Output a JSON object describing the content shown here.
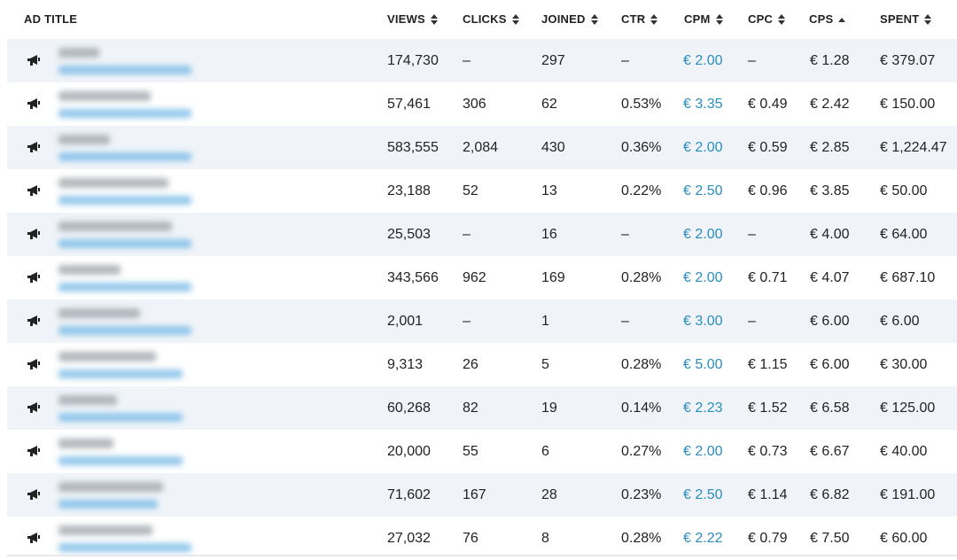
{
  "columns": {
    "ad_title": "AD TITLE",
    "views": "VIEWS",
    "clicks": "CLICKS",
    "joined": "JOINED",
    "ctr": "CTR",
    "cpm": "CPM",
    "cpc": "CPC",
    "cps": "CPS",
    "spent": "SPENT"
  },
  "sort": {
    "column": "CPS",
    "direction": "ascending"
  },
  "colors": {
    "accent": "#2a8dbf",
    "row_alt": "#f0f4f8"
  },
  "row_icon": "megaphone-icon",
  "rows": [
    {
      "views": "174,730",
      "clicks": "–",
      "joined": "297",
      "ctr": "–",
      "cpm": "€ 2.00",
      "cpc": "–",
      "cps": "€ 1.28",
      "spent": "€ 379.07"
    },
    {
      "views": "57,461",
      "clicks": "306",
      "joined": "62",
      "ctr": "0.53%",
      "cpm": "€ 3.35",
      "cpc": "€ 0.49",
      "cps": "€ 2.42",
      "spent": "€ 150.00"
    },
    {
      "views": "583,555",
      "clicks": "2,084",
      "joined": "430",
      "ctr": "0.36%",
      "cpm": "€ 2.00",
      "cpc": "€ 0.59",
      "cps": "€ 2.85",
      "spent": "€ 1,224.47"
    },
    {
      "views": "23,188",
      "clicks": "52",
      "joined": "13",
      "ctr": "0.22%",
      "cpm": "€ 2.50",
      "cpc": "€ 0.96",
      "cps": "€ 3.85",
      "spent": "€ 50.00"
    },
    {
      "views": "25,503",
      "clicks": "–",
      "joined": "16",
      "ctr": "–",
      "cpm": "€ 2.00",
      "cpc": "–",
      "cps": "€ 4.00",
      "spent": "€ 64.00"
    },
    {
      "views": "343,566",
      "clicks": "962",
      "joined": "169",
      "ctr": "0.28%",
      "cpm": "€ 2.00",
      "cpc": "€ 0.71",
      "cps": "€ 4.07",
      "spent": "€ 687.10"
    },
    {
      "views": "2,001",
      "clicks": "–",
      "joined": "1",
      "ctr": "–",
      "cpm": "€ 3.00",
      "cpc": "–",
      "cps": "€ 6.00",
      "spent": "€ 6.00"
    },
    {
      "views": "9,313",
      "clicks": "26",
      "joined": "5",
      "ctr": "0.28%",
      "cpm": "€ 5.00",
      "cpc": "€ 1.15",
      "cps": "€ 6.00",
      "spent": "€ 30.00"
    },
    {
      "views": "60,268",
      "clicks": "82",
      "joined": "19",
      "ctr": "0.14%",
      "cpm": "€ 2.23",
      "cpc": "€ 1.52",
      "cps": "€ 6.58",
      "spent": "€ 125.00"
    },
    {
      "views": "20,000",
      "clicks": "55",
      "joined": "6",
      "ctr": "0.27%",
      "cpm": "€ 2.00",
      "cpc": "€ 0.73",
      "cps": "€ 6.67",
      "spent": "€ 40.00"
    },
    {
      "views": "71,602",
      "clicks": "167",
      "joined": "28",
      "ctr": "0.23%",
      "cpm": "€ 2.50",
      "cpc": "€ 1.14",
      "cps": "€ 6.82",
      "spent": "€ 191.00"
    },
    {
      "views": "27,032",
      "clicks": "76",
      "joined": "8",
      "ctr": "0.28%",
      "cpm": "€ 2.22",
      "cpc": "€ 0.79",
      "cps": "€ 7.50",
      "spent": "€ 60.00"
    }
  ]
}
